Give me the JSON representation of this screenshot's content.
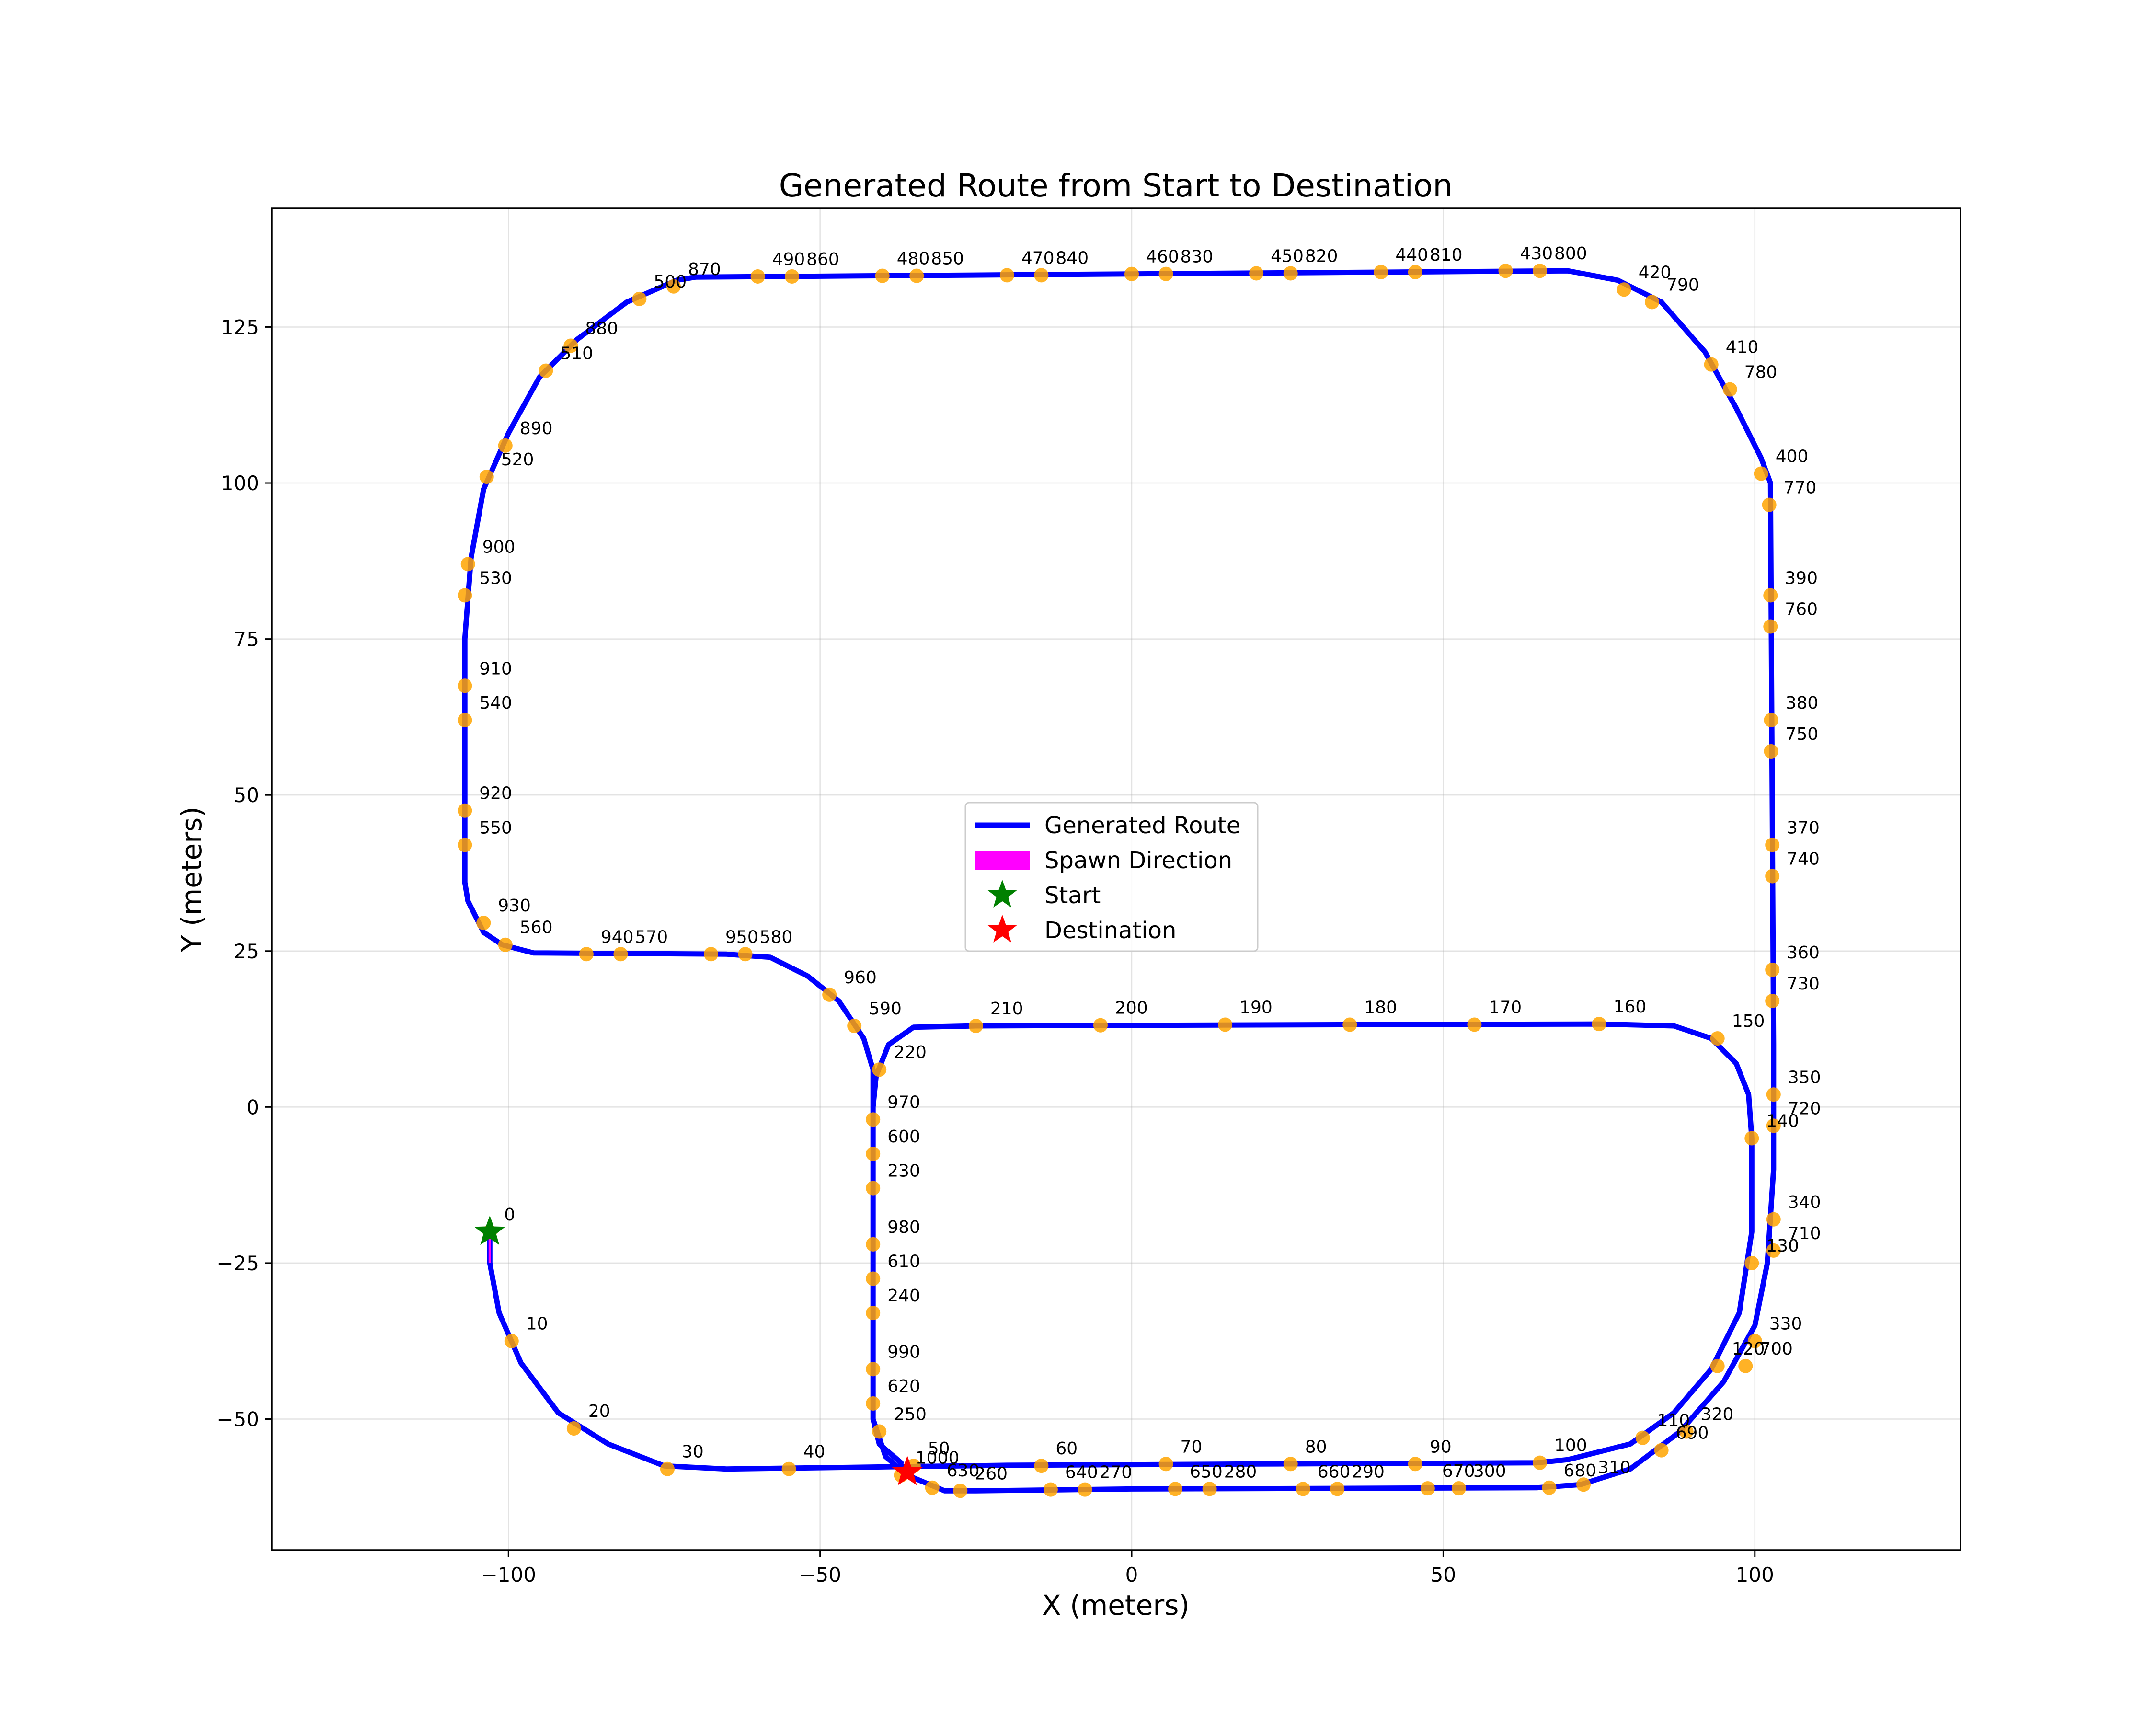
{
  "chart_data": {
    "type": "scatter",
    "title": "Generated Route from Start to Destination",
    "xlabel": "X (meters)",
    "ylabel": "Y (meters)",
    "xlim": [
      -138,
      133
    ],
    "ylim": [
      -71,
      144
    ],
    "xticks": [
      -100,
      -50,
      0,
      50,
      100
    ],
    "xtick_labels": [
      "−100",
      "−50",
      "0",
      "50",
      "100"
    ],
    "yticks": [
      -50,
      -25,
      0,
      25,
      50,
      75,
      100,
      125
    ],
    "ytick_labels": [
      "−50",
      "−25",
      "0",
      "25",
      "50",
      "75",
      "100",
      "125"
    ],
    "grid": true,
    "legend_position": "center",
    "colors": {
      "route": "#0000ff",
      "waypoint": "#ffa500",
      "spawn": "#ff00ff",
      "start": "#008000",
      "destination": "#ff0000"
    },
    "route": [
      [
        -103,
        -20
      ],
      [
        -103,
        -25
      ],
      [
        -101.5,
        -33
      ],
      [
        -98,
        -41
      ],
      [
        -92,
        -49
      ],
      [
        -84,
        -54
      ],
      [
        -75,
        -57.5
      ],
      [
        -65,
        -58
      ],
      [
        -20,
        -57.4
      ],
      [
        20,
        -57.2
      ],
      [
        65,
        -57
      ],
      [
        70,
        -56.5
      ],
      [
        80,
        -54
      ],
      [
        87,
        -49
      ],
      [
        93,
        -42
      ],
      [
        97.5,
        -33
      ],
      [
        99.5,
        -20
      ],
      [
        99.5,
        -5
      ],
      [
        99,
        2
      ],
      [
        97,
        7
      ],
      [
        93,
        11
      ],
      [
        87,
        13
      ],
      [
        75,
        13.3
      ],
      [
        0,
        13.1
      ],
      [
        -25,
        13
      ],
      [
        -35,
        12.8
      ],
      [
        -39,
        10
      ],
      [
        -41,
        5
      ],
      [
        -41.5,
        0
      ],
      [
        -41.5,
        -50
      ],
      [
        -39.5,
        -56
      ],
      [
        -36,
        -59
      ],
      [
        -30,
        -61.5
      ],
      [
        -25,
        -61.5
      ],
      [
        0,
        -61.2
      ],
      [
        65,
        -61
      ],
      [
        72,
        -60.5
      ],
      [
        80,
        -58
      ],
      [
        88,
        -52
      ],
      [
        95,
        -44
      ],
      [
        100,
        -35
      ],
      [
        102,
        -25
      ],
      [
        103,
        -10
      ],
      [
        103,
        10
      ],
      [
        102.5,
        100
      ],
      [
        101,
        104
      ],
      [
        97,
        112
      ],
      [
        92,
        121
      ],
      [
        85,
        129
      ],
      [
        78,
        132.5
      ],
      [
        70,
        134
      ],
      [
        0,
        133.5
      ],
      [
        -70,
        133
      ],
      [
        -73,
        132.5
      ],
      [
        -81,
        129
      ],
      [
        -89,
        123
      ],
      [
        -95,
        117
      ],
      [
        -100,
        108
      ],
      [
        -104,
        99
      ],
      [
        -106,
        88
      ],
      [
        -107,
        75
      ],
      [
        -107,
        36
      ],
      [
        -106.5,
        33
      ],
      [
        -104,
        28
      ],
      [
        -101,
        26
      ],
      [
        -96,
        24.7
      ],
      [
        -65,
        24.5
      ],
      [
        -58,
        24
      ],
      [
        -52,
        21
      ],
      [
        -47,
        17
      ],
      [
        -43,
        11
      ],
      [
        -41.5,
        6
      ],
      [
        -41.5,
        -50
      ],
      [
        -40.5,
        -54
      ],
      [
        -37,
        -57
      ]
    ],
    "waypoints": [
      {
        "x": -103,
        "y": -20,
        "label": "0"
      },
      {
        "x": -99.5,
        "y": -37.5,
        "label": "10"
      },
      {
        "x": -89.5,
        "y": -51.5,
        "label": "20"
      },
      {
        "x": -74.5,
        "y": -58,
        "label": "30"
      },
      {
        "x": -55,
        "y": -58,
        "label": "40"
      },
      {
        "x": -35,
        "y": -57.5,
        "label": "50"
      },
      {
        "x": -14.5,
        "y": -57.5,
        "label": "60"
      },
      {
        "x": 5.5,
        "y": -57.2,
        "label": "70"
      },
      {
        "x": 25.5,
        "y": -57.2,
        "label": "80"
      },
      {
        "x": 45.5,
        "y": -57.2,
        "label": "90"
      },
      {
        "x": 65.5,
        "y": -57,
        "label": "100"
      },
      {
        "x": 82,
        "y": -53,
        "label": "110"
      },
      {
        "x": 94,
        "y": -41.5,
        "label": "120"
      },
      {
        "x": 99.5,
        "y": -25,
        "label": "130"
      },
      {
        "x": 99.5,
        "y": -5,
        "label": "140"
      },
      {
        "x": 94,
        "y": 11,
        "label": "150"
      },
      {
        "x": 75,
        "y": 13.3,
        "label": "160"
      },
      {
        "x": 55,
        "y": 13.2,
        "label": "170"
      },
      {
        "x": 35,
        "y": 13.2,
        "label": "180"
      },
      {
        "x": 15,
        "y": 13.2,
        "label": "190"
      },
      {
        "x": -5,
        "y": 13.1,
        "label": "200"
      },
      {
        "x": -25,
        "y": 13,
        "label": "210"
      },
      {
        "x": -40.5,
        "y": 6,
        "label": "220"
      },
      {
        "x": -41.5,
        "y": -13,
        "label": "230"
      },
      {
        "x": -41.5,
        "y": -33,
        "label": "240"
      },
      {
        "x": -40.5,
        "y": -52,
        "label": "250"
      },
      {
        "x": -27.5,
        "y": -61.5,
        "label": "260"
      },
      {
        "x": -7.5,
        "y": -61.3,
        "label": "270"
      },
      {
        "x": 12.5,
        "y": -61.2,
        "label": "280"
      },
      {
        "x": 33,
        "y": -61.2,
        "label": "290"
      },
      {
        "x": 52.5,
        "y": -61.1,
        "label": "300"
      },
      {
        "x": 72.5,
        "y": -60.5,
        "label": "310"
      },
      {
        "x": 89,
        "y": -52,
        "label": "320"
      },
      {
        "x": 100,
        "y": -37.5,
        "label": "330"
      },
      {
        "x": 103,
        "y": -18,
        "label": "340"
      },
      {
        "x": 103,
        "y": 2,
        "label": "350"
      },
      {
        "x": 102.8,
        "y": 22,
        "label": "360"
      },
      {
        "x": 102.8,
        "y": 42,
        "label": "370"
      },
      {
        "x": 102.6,
        "y": 62,
        "label": "380"
      },
      {
        "x": 102.5,
        "y": 82,
        "label": "390"
      },
      {
        "x": 101,
        "y": 101.5,
        "label": "400"
      },
      {
        "x": 93,
        "y": 119,
        "label": "410"
      },
      {
        "x": 79,
        "y": 131,
        "label": "420"
      },
      {
        "x": 60,
        "y": 134,
        "label": "430"
      },
      {
        "x": 40,
        "y": 133.8,
        "label": "440"
      },
      {
        "x": 20,
        "y": 133.6,
        "label": "450"
      },
      {
        "x": 0,
        "y": 133.5,
        "label": "460"
      },
      {
        "x": -20,
        "y": 133.3,
        "label": "470"
      },
      {
        "x": -40,
        "y": 133.2,
        "label": "480"
      },
      {
        "x": -60,
        "y": 133.1,
        "label": "490"
      },
      {
        "x": -79,
        "y": 129.5,
        "label": "500"
      },
      {
        "x": -94,
        "y": 118,
        "label": "510"
      },
      {
        "x": -103.5,
        "y": 101,
        "label": "520"
      },
      {
        "x": -107,
        "y": 82,
        "label": "530"
      },
      {
        "x": -107,
        "y": 62,
        "label": "540"
      },
      {
        "x": -107,
        "y": 42,
        "label": "550"
      },
      {
        "x": -100.5,
        "y": 26,
        "label": "560"
      },
      {
        "x": -82,
        "y": 24.5,
        "label": "570"
      },
      {
        "x": -62,
        "y": 24.5,
        "label": "580"
      },
      {
        "x": -44.5,
        "y": 13,
        "label": "590"
      },
      {
        "x": -41.5,
        "y": -7.5,
        "label": "600"
      },
      {
        "x": -41.5,
        "y": -27.5,
        "label": "610"
      },
      {
        "x": -41.5,
        "y": -47.5,
        "label": "620"
      },
      {
        "x": -32,
        "y": -61,
        "label": "630"
      },
      {
        "x": -13,
        "y": -61.3,
        "label": "640"
      },
      {
        "x": 7,
        "y": -61.2,
        "label": "650"
      },
      {
        "x": 27.5,
        "y": -61.2,
        "label": "660"
      },
      {
        "x": 47.5,
        "y": -61.1,
        "label": "670"
      },
      {
        "x": 67,
        "y": -61,
        "label": "680"
      },
      {
        "x": 85,
        "y": -55,
        "label": "690"
      },
      {
        "x": 98.5,
        "y": -41.5,
        "label": "700"
      },
      {
        "x": 103,
        "y": -23,
        "label": "710"
      },
      {
        "x": 103,
        "y": -3,
        "label": "720"
      },
      {
        "x": 102.8,
        "y": 17,
        "label": "730"
      },
      {
        "x": 102.8,
        "y": 37,
        "label": "740"
      },
      {
        "x": 102.6,
        "y": 57,
        "label": "750"
      },
      {
        "x": 102.5,
        "y": 77,
        "label": "760"
      },
      {
        "x": 102.3,
        "y": 96.5,
        "label": "770"
      },
      {
        "x": 96,
        "y": 115,
        "label": "780"
      },
      {
        "x": 83.5,
        "y": 129,
        "label": "790"
      },
      {
        "x": 65.5,
        "y": 134,
        "label": "800"
      },
      {
        "x": 45.5,
        "y": 133.8,
        "label": "810"
      },
      {
        "x": 25.5,
        "y": 133.6,
        "label": "820"
      },
      {
        "x": 5.5,
        "y": 133.5,
        "label": "830"
      },
      {
        "x": -14.5,
        "y": 133.3,
        "label": "840"
      },
      {
        "x": -34.5,
        "y": 133.2,
        "label": "850"
      },
      {
        "x": -54.5,
        "y": 133.1,
        "label": "860"
      },
      {
        "x": -73.5,
        "y": 131.5,
        "label": "870"
      },
      {
        "x": -90,
        "y": 122,
        "label": "880"
      },
      {
        "x": -100.5,
        "y": 106,
        "label": "890"
      },
      {
        "x": -106.5,
        "y": 87,
        "label": "900"
      },
      {
        "x": -107,
        "y": 67.5,
        "label": "910"
      },
      {
        "x": -107,
        "y": 47.5,
        "label": "920"
      },
      {
        "x": -104,
        "y": 29.5,
        "label": "930"
      },
      {
        "x": -87.5,
        "y": 24.5,
        "label": "940"
      },
      {
        "x": -67.5,
        "y": 24.5,
        "label": "950"
      },
      {
        "x": -48.5,
        "y": 18,
        "label": "960"
      },
      {
        "x": -41.5,
        "y": -2,
        "label": "970"
      },
      {
        "x": -41.5,
        "y": -22,
        "label": "980"
      },
      {
        "x": -41.5,
        "y": -42,
        "label": "990"
      },
      {
        "x": -37,
        "y": -59,
        "label": "1000"
      }
    ],
    "start": {
      "x": -103,
      "y": -20
    },
    "destination": {
      "x": -36,
      "y": -58.5
    },
    "spawn_direction": {
      "x": -103,
      "y": -20,
      "dx": 0,
      "dy": -5
    },
    "legend": [
      {
        "label": "Generated Route",
        "kind": "line"
      },
      {
        "label": "Spawn Direction",
        "kind": "patch"
      },
      {
        "label": "Start",
        "kind": "star-start"
      },
      {
        "label": "Destination",
        "kind": "star-dest"
      }
    ]
  }
}
